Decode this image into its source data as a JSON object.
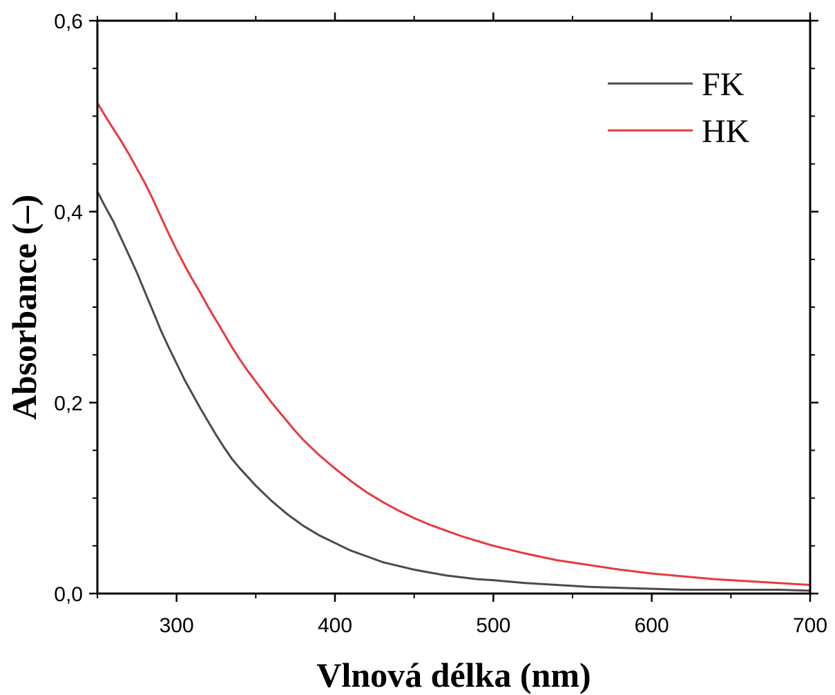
{
  "chart_data": {
    "type": "line",
    "xlabel": "Vlnová délka (nm)",
    "ylabel": "Absorbance (–)",
    "xlim": [
      250,
      700
    ],
    "ylim": [
      0,
      0.6
    ],
    "x_ticks": [
      300,
      400,
      500,
      600,
      700
    ],
    "x_tick_labels": [
      "300",
      "400",
      "500",
      "600",
      "700"
    ],
    "y_ticks": [
      0.0,
      0.2,
      0.4,
      0.6
    ],
    "y_tick_labels": [
      "0,0",
      "0,2",
      "0,4",
      "0,6"
    ],
    "grid": false,
    "legend_position": "top-right",
    "series": [
      {
        "name": "FK",
        "color": "#4a4a4a",
        "x": [
          250,
          255,
          260,
          265,
          270,
          275,
          280,
          285,
          290,
          295,
          300,
          305,
          310,
          315,
          320,
          325,
          330,
          335,
          340,
          345,
          350,
          355,
          360,
          365,
          370,
          375,
          380,
          385,
          390,
          395,
          400,
          410,
          420,
          430,
          440,
          450,
          460,
          470,
          480,
          490,
          500,
          520,
          540,
          560,
          580,
          600,
          620,
          640,
          660,
          680,
          700
        ],
        "y": [
          0.421,
          0.405,
          0.39,
          0.372,
          0.354,
          0.336,
          0.316,
          0.296,
          0.276,
          0.258,
          0.241,
          0.224,
          0.209,
          0.194,
          0.18,
          0.166,
          0.153,
          0.141,
          0.131,
          0.122,
          0.113,
          0.105,
          0.097,
          0.09,
          0.083,
          0.077,
          0.071,
          0.066,
          0.061,
          0.057,
          0.053,
          0.045,
          0.039,
          0.033,
          0.029,
          0.025,
          0.022,
          0.019,
          0.017,
          0.015,
          0.014,
          0.011,
          0.009,
          0.007,
          0.006,
          0.005,
          0.004,
          0.004,
          0.004,
          0.004,
          0.003
        ]
      },
      {
        "name": "HK",
        "color": "#e8383d",
        "x": [
          250,
          255,
          260,
          265,
          270,
          275,
          280,
          285,
          290,
          295,
          300,
          305,
          310,
          315,
          320,
          325,
          330,
          335,
          340,
          345,
          350,
          355,
          360,
          365,
          370,
          375,
          380,
          385,
          390,
          395,
          400,
          410,
          420,
          430,
          440,
          450,
          460,
          470,
          480,
          490,
          500,
          520,
          540,
          560,
          580,
          600,
          620,
          640,
          660,
          680,
          700
        ],
        "y": [
          0.514,
          0.5,
          0.487,
          0.474,
          0.46,
          0.445,
          0.43,
          0.413,
          0.395,
          0.377,
          0.36,
          0.344,
          0.329,
          0.315,
          0.3,
          0.286,
          0.272,
          0.258,
          0.245,
          0.233,
          0.222,
          0.211,
          0.2,
          0.19,
          0.18,
          0.17,
          0.161,
          0.153,
          0.145,
          0.138,
          0.131,
          0.118,
          0.106,
          0.096,
          0.087,
          0.079,
          0.072,
          0.066,
          0.06,
          0.055,
          0.05,
          0.042,
          0.035,
          0.03,
          0.025,
          0.021,
          0.018,
          0.015,
          0.013,
          0.011,
          0.009
        ]
      }
    ]
  }
}
